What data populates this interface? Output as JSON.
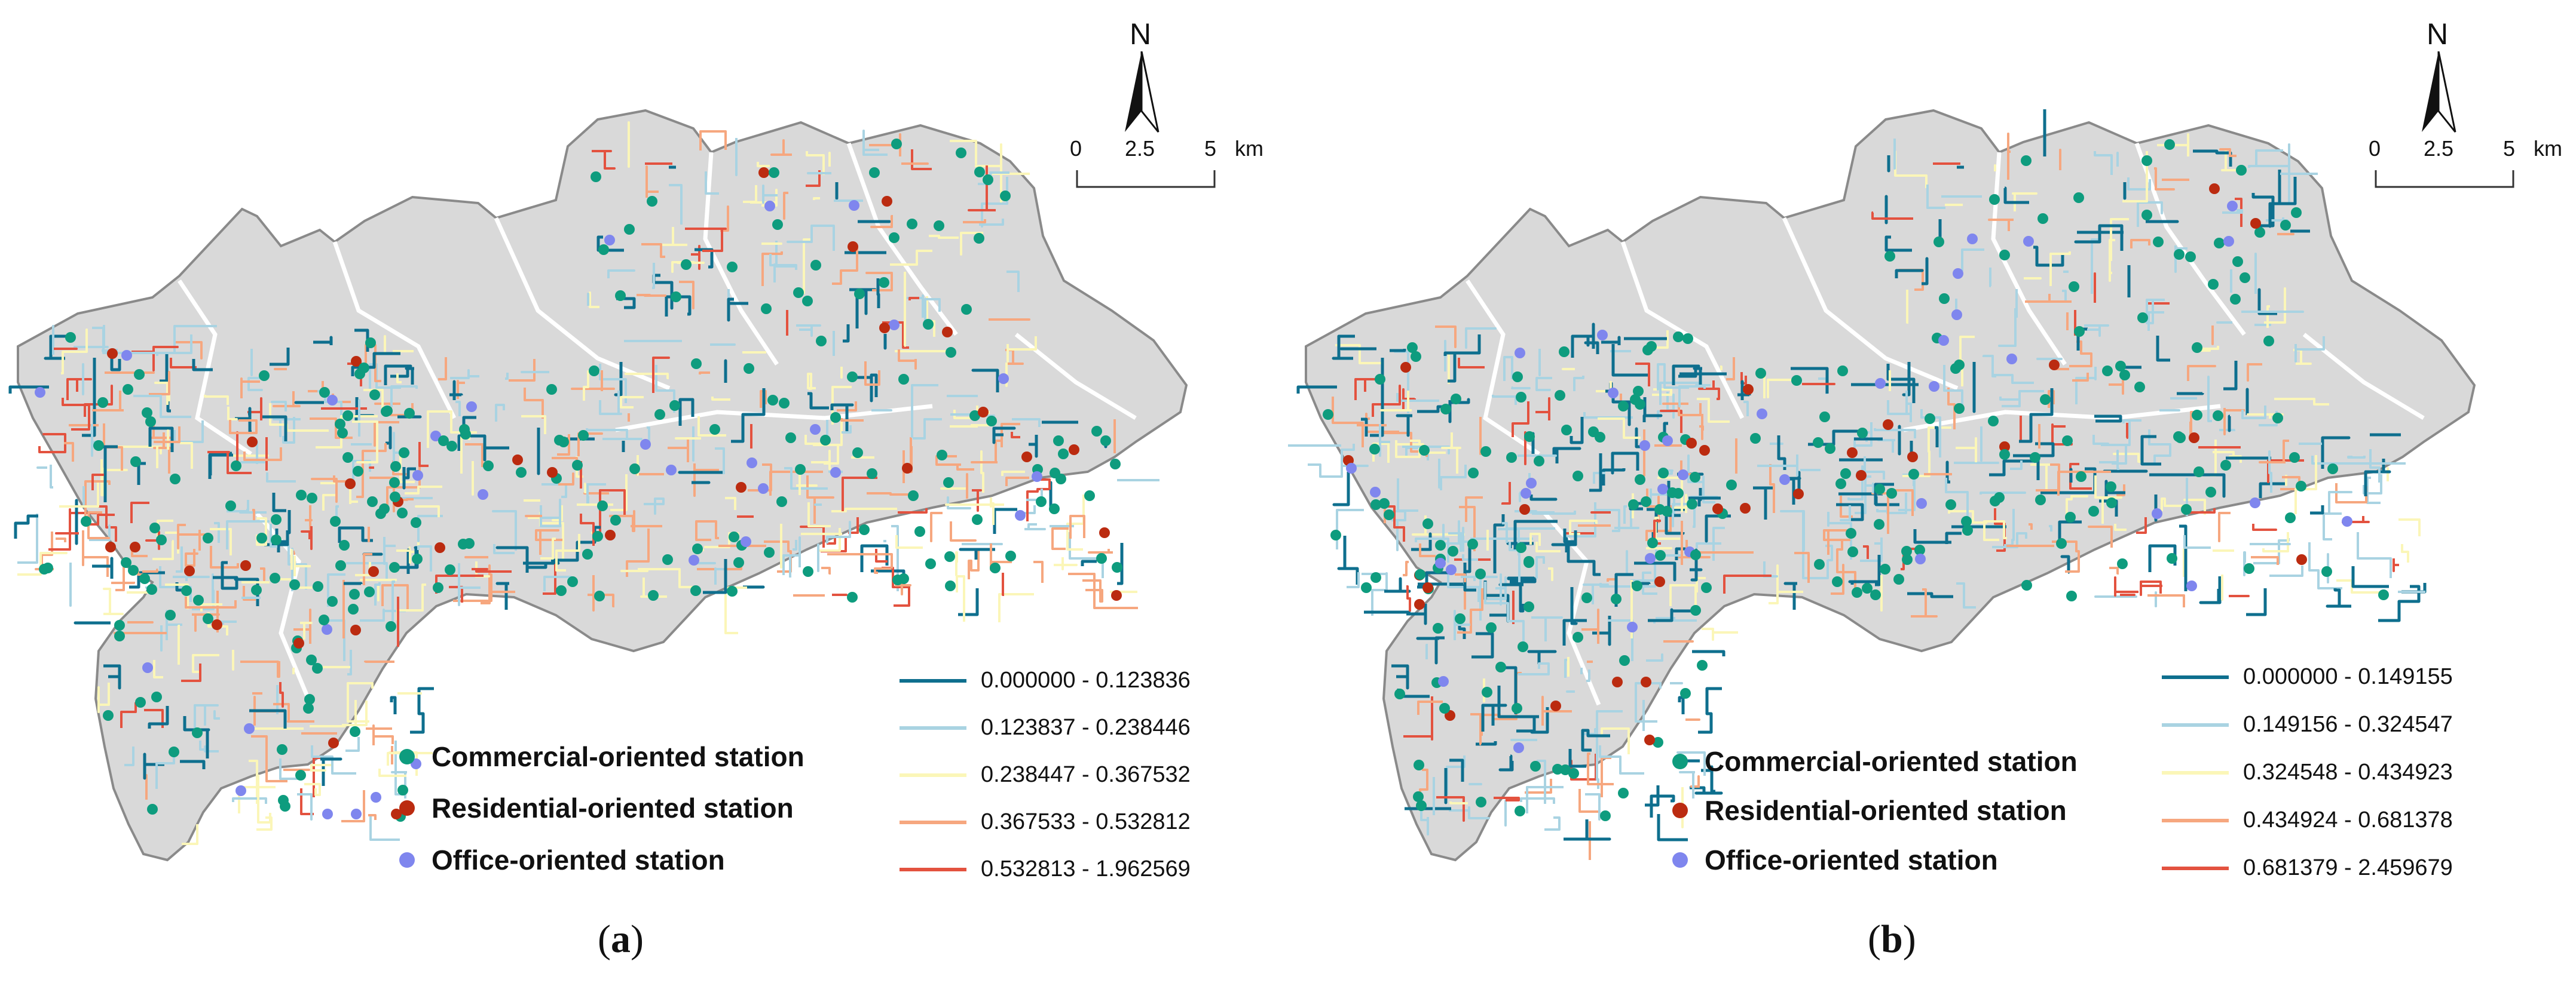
{
  "panels": [
    {
      "id": "a",
      "caption_open": "(",
      "caption_letter": "a",
      "caption_close": ")",
      "north": "N",
      "scale": [
        "0",
        "2.5",
        "5",
        "km"
      ],
      "stations": [
        {
          "label": "Commercial-oriented station",
          "color": "#0e9c7e"
        },
        {
          "label": "Residential-oriented station",
          "color": "#bb2b10"
        },
        {
          "label": "Office-oriented station",
          "color": "#7f86ee"
        }
      ],
      "classes": [
        {
          "label": "0.000000 - 0.123836",
          "color": "#0e6f8e"
        },
        {
          "label": "0.123837 - 0.238446",
          "color": "#a9d3e2"
        },
        {
          "label": "0.238447 - 0.367532",
          "color": "#fbf6b8"
        },
        {
          "label": "0.367533 - 0.532812",
          "color": "#f6a77f"
        },
        {
          "label": "0.532813 - 1.962569",
          "color": "#e3523f"
        }
      ]
    },
    {
      "id": "b",
      "caption_open": "(",
      "caption_letter": "b",
      "caption_close": ")",
      "north": "N",
      "scale": [
        "0",
        "2.5",
        "5",
        "km"
      ],
      "stations": [
        {
          "label": "Commercial-oriented station",
          "color": "#0e9c7e"
        },
        {
          "label": "Residential-oriented station",
          "color": "#bb2b10"
        },
        {
          "label": "Office-oriented station",
          "color": "#7f86ee"
        }
      ],
      "classes": [
        {
          "label": "0.000000 - 0.149155",
          "color": "#0e6f8e"
        },
        {
          "label": "0.149156 - 0.324547",
          "color": "#a9d3e2"
        },
        {
          "label": "0.324548 - 0.434923",
          "color": "#fbf6b8"
        },
        {
          "label": "0.434924 - 0.681378",
          "color": "#f6a77f"
        },
        {
          "label": "0.681379 - 2.459679",
          "color": "#e3523f"
        }
      ]
    }
  ]
}
